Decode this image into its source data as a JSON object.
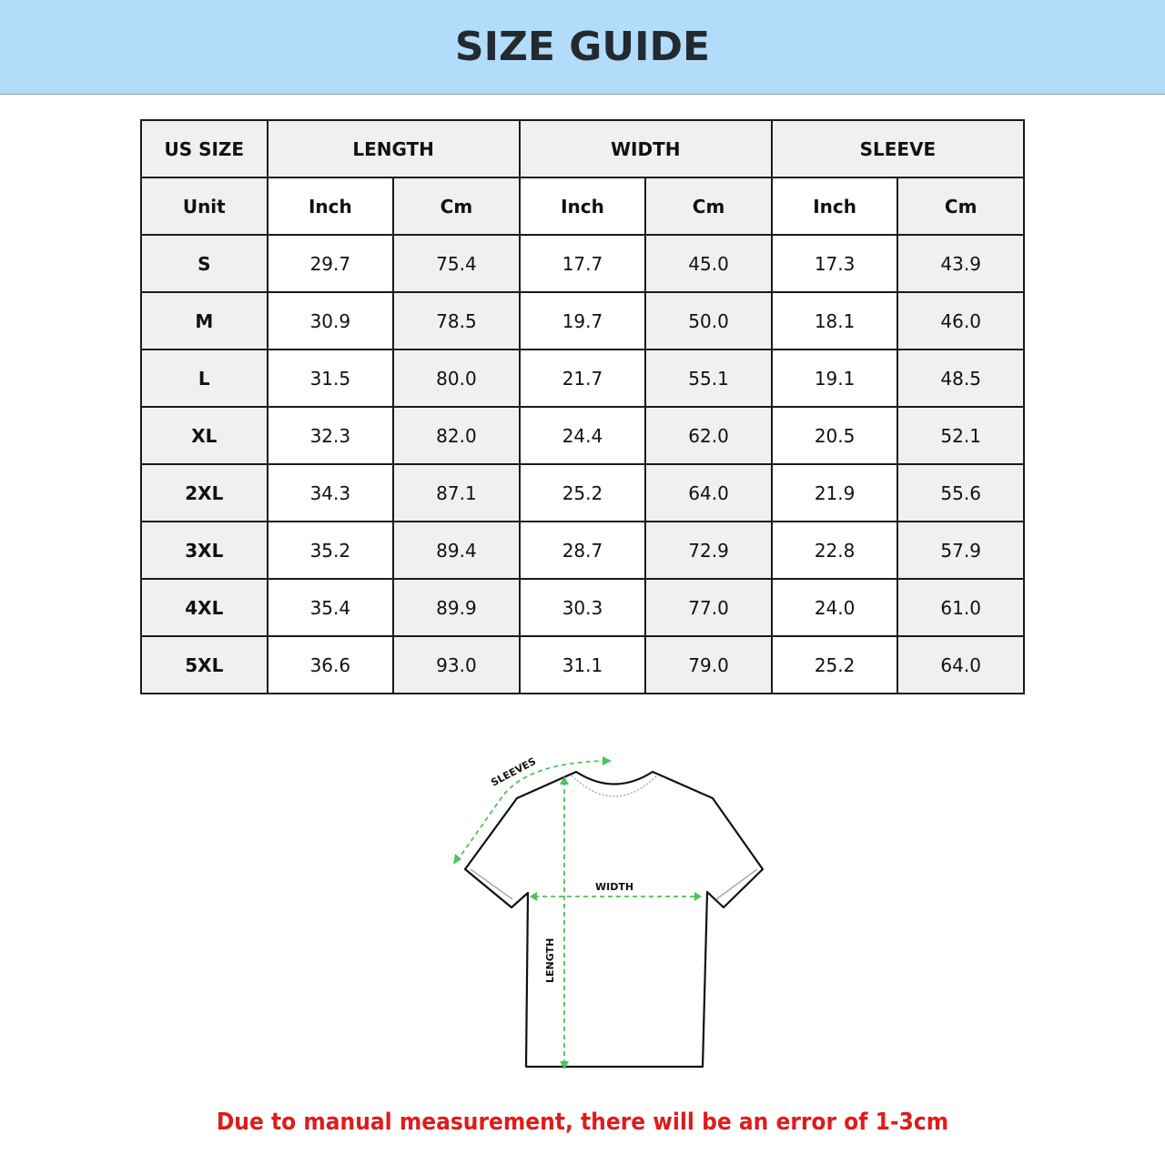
{
  "title": "SIZE GUIDE",
  "table": {
    "group_headers": [
      "US SIZE",
      "LENGTH",
      "WIDTH",
      "SLEEVE"
    ],
    "unit_row": [
      "Unit",
      "Inch",
      "Cm",
      "Inch",
      "Cm",
      "Inch",
      "Cm"
    ],
    "rows": [
      [
        "S",
        "29.7",
        "75.4",
        "17.7",
        "45.0",
        "17.3",
        "43.9"
      ],
      [
        "M",
        "30.9",
        "78.5",
        "19.7",
        "50.0",
        "18.1",
        "46.0"
      ],
      [
        "L",
        "31.5",
        "80.0",
        "21.7",
        "55.1",
        "19.1",
        "48.5"
      ],
      [
        "XL",
        "32.3",
        "82.0",
        "24.4",
        "62.0",
        "20.5",
        "52.1"
      ],
      [
        "2XL",
        "34.3",
        "87.1",
        "25.2",
        "64.0",
        "21.9",
        "55.6"
      ],
      [
        "3XL",
        "35.2",
        "89.4",
        "28.7",
        "72.9",
        "22.8",
        "57.9"
      ],
      [
        "4XL",
        "35.4",
        "89.9",
        "30.3",
        "77.0",
        "24.0",
        "61.0"
      ],
      [
        "5XL",
        "36.6",
        "93.0",
        "31.1",
        "79.0",
        "25.2",
        "64.0"
      ]
    ]
  },
  "diagram": {
    "sleeves_label": "SLEEVES",
    "width_label": "WIDTH",
    "length_label": "LENGTH",
    "arrow_color": "#4cc35a"
  },
  "note": "Due to manual measurement, there will be an error of 1-3cm",
  "colors": {
    "banner": "#b3dcfb",
    "note": "#e01b1b"
  }
}
